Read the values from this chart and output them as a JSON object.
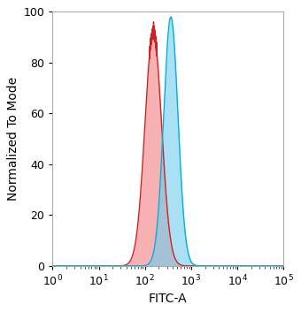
{
  "xlabel": "FITC-A",
  "ylabel": "Normalized To Mode",
  "xlim_log": [
    0,
    5
  ],
  "ylim": [
    0,
    100
  ],
  "yticks": [
    0,
    20,
    40,
    60,
    80,
    100
  ],
  "xticks_log": [
    0,
    1,
    2,
    3,
    4,
    5
  ],
  "red_peak_log": 2.18,
  "red_sigma_log": 0.18,
  "red_max": 96,
  "blue_peak_log": 2.56,
  "blue_sigma_log": 0.155,
  "blue_max": 98,
  "red_line_color": "#d42020",
  "red_fill_color": "#f08080",
  "blue_line_color": "#00b0e0",
  "blue_fill_color": "#70ccee",
  "red_fill_alpha": 0.6,
  "blue_fill_alpha": 0.6,
  "background_color": "#ffffff",
  "spine_color": "#aaaaaa",
  "axis_linewidth": 0.8,
  "figure_width": 3.4,
  "figure_height": 3.53,
  "tick_labelsize": 9,
  "label_fontsize": 10
}
